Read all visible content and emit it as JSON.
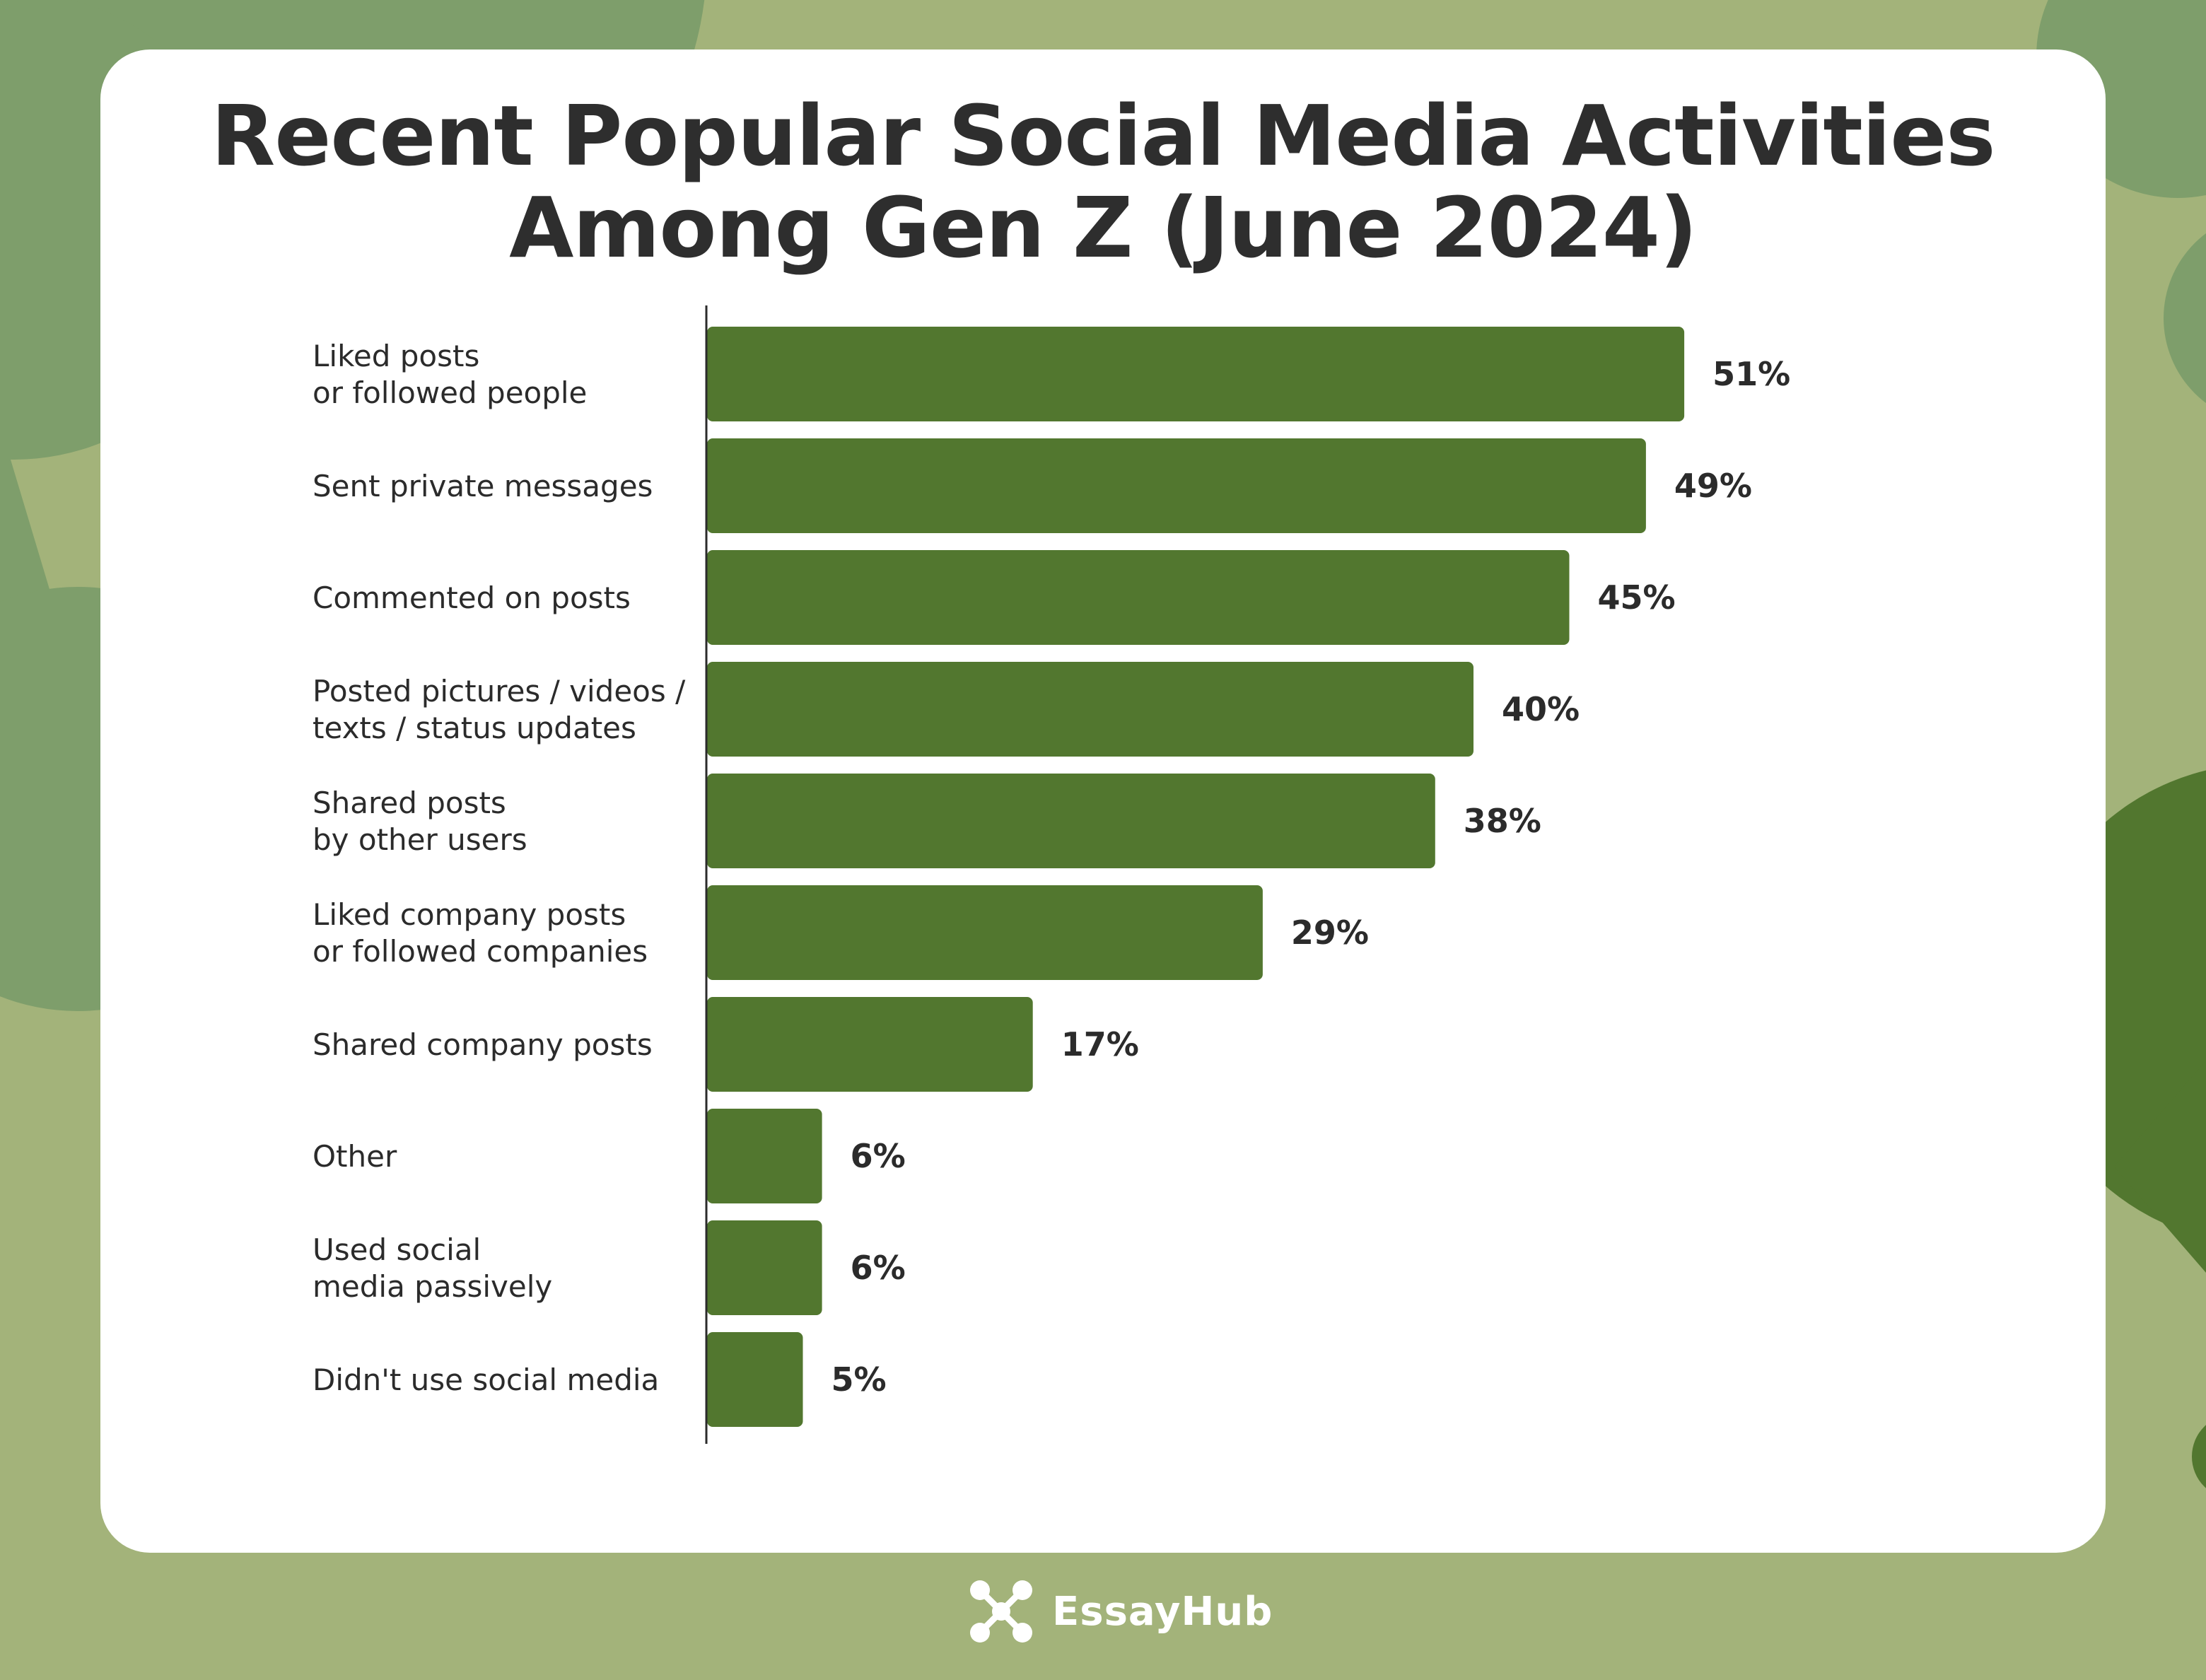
{
  "title_lines": [
    "Recent Popular Social Media Activities",
    "Among Gen Z (June 2024)"
  ],
  "brand": {
    "name": "EssayHub",
    "icon": "network-nodes-icon"
  },
  "colors": {
    "background": "#a3b37a",
    "bar": "#52772f",
    "blob_light": "#7e9e6b",
    "blob_dark": "#52772f",
    "card": "#ffffff",
    "text": "#2e2e2e"
  },
  "chart_data": {
    "type": "bar",
    "orientation": "horizontal",
    "title": "Recent Popular Social Media Activities Among Gen Z (June 2024)",
    "categories": [
      [
        "Liked posts",
        "or followed people"
      ],
      [
        "Sent private messages"
      ],
      [
        "Commented on posts"
      ],
      [
        "Posted pictures / videos /",
        "texts / status updates"
      ],
      [
        "Shared posts",
        "by other users"
      ],
      [
        "Liked company posts",
        "or followed companies"
      ],
      [
        "Shared company posts"
      ],
      [
        "Other"
      ],
      [
        "Used social",
        "media passively"
      ],
      [
        "Didn't use social media"
      ]
    ],
    "values": [
      51,
      49,
      45,
      40,
      38,
      29,
      17,
      6,
      6,
      5
    ],
    "value_labels": [
      "51%",
      "49%",
      "45%",
      "40%",
      "38%",
      "29%",
      "17%",
      "6%",
      "6%",
      "5%"
    ],
    "unit": "%",
    "xlim": [
      0,
      100
    ],
    "grid": false,
    "legend": "none"
  }
}
